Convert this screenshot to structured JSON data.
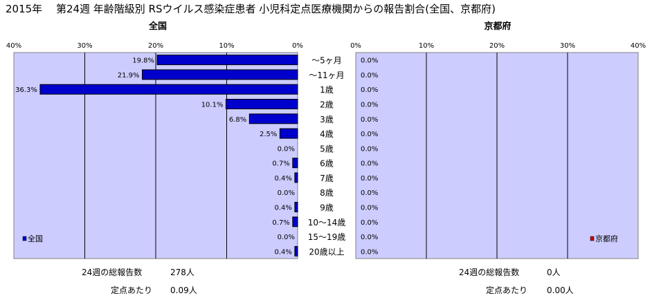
{
  "title": "2015年　 第24週 年齢階級別 RSウイルス感染症患者 小児科定点医療機関からの報告割合(全国、京都府)",
  "chart_data": [
    {
      "type": "bar",
      "orientation": "horizontal",
      "title": "全国",
      "x_direction": "reversed",
      "xlim": [
        0,
        40
      ],
      "x_ticks": [
        "0%",
        "10%",
        "20%",
        "30%",
        "40%"
      ],
      "categories": [
        "～5ヶ月",
        "～11ヶ月",
        "1歳",
        "2歳",
        "3歳",
        "4歳",
        "5歳",
        "6歳",
        "7歳",
        "8歳",
        "9歳",
        "10～14歳",
        "15～19歳",
        "20歳以上"
      ],
      "series": [
        {
          "name": "全国",
          "color": "#0000cc",
          "values": [
            19.8,
            21.9,
            36.3,
            10.1,
            6.8,
            2.5,
            0.0,
            0.7,
            0.4,
            0.0,
            0.4,
            0.7,
            0.0,
            0.4
          ],
          "labels": [
            "19.8%",
            "21.9%",
            "36.3%",
            "10.1%",
            "6.8%",
            "2.5%",
            "0.0%",
            "0.7%",
            "0.4%",
            "0.0%",
            "0.4%",
            "0.7%",
            "0.0%",
            "0.4%"
          ]
        }
      ],
      "legend": "bottom-left",
      "grid": true
    },
    {
      "type": "bar",
      "orientation": "horizontal",
      "title": "京都府",
      "xlim": [
        0,
        40
      ],
      "x_ticks": [
        "0%",
        "10%",
        "20%",
        "30%",
        "40%"
      ],
      "categories": [
        "～5ヶ月",
        "～11ヶ月",
        "1歳",
        "2歳",
        "3歳",
        "4歳",
        "5歳",
        "6歳",
        "7歳",
        "8歳",
        "9歳",
        "10～14歳",
        "15～19歳",
        "20歳以上"
      ],
      "series": [
        {
          "name": "京都府",
          "color": "#cc0000",
          "values": [
            0.0,
            0.0,
            0.0,
            0.0,
            0.0,
            0.0,
            0.0,
            0.0,
            0.0,
            0.0,
            0.0,
            0.0,
            0.0,
            0.0
          ],
          "labels": [
            "0.0%",
            "0.0%",
            "0.0%",
            "0.0%",
            "0.0%",
            "0.0%",
            "0.0%",
            "0.0%",
            "0.0%",
            "0.0%",
            "0.0%",
            "0.0%",
            "0.0%",
            "0.0%"
          ]
        }
      ],
      "legend": "bottom-right",
      "grid": true
    }
  ],
  "summary": {
    "national": {
      "total_label": "24週の総報告数",
      "total_value": "278人",
      "per_site_label": "定点あたり",
      "per_site_value": "0.09人"
    },
    "kyoto": {
      "total_label": "24週の総報告数",
      "total_value": "0人",
      "per_site_label": "定点あたり",
      "per_site_value": "0.00人"
    }
  },
  "colors": {
    "plot_bg": "#ccccff",
    "national_bar": "#0000cc",
    "kyoto_bar": "#cc0000",
    "grid": "#000000"
  }
}
